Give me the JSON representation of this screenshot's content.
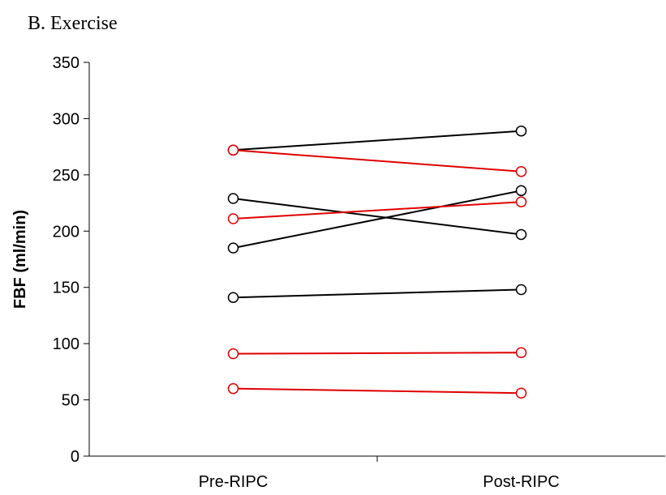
{
  "panel_title": "B.  Exercise",
  "chart_data": {
    "type": "line",
    "title": "",
    "xlabel": "",
    "ylabel": "FBF (ml/min)",
    "categories": [
      "Pre-RIPC",
      "Post-RIPC"
    ],
    "ylim": [
      0,
      350
    ],
    "yticks": [
      0,
      50,
      100,
      150,
      200,
      250,
      300,
      350
    ],
    "grid": false,
    "legend": "none",
    "marker": "open-circle",
    "colors": {
      "black": "#000000",
      "red": "#e00000"
    },
    "series": [
      {
        "color": "black",
        "values": [
          272,
          289
        ]
      },
      {
        "color": "black",
        "values": [
          229,
          197
        ]
      },
      {
        "color": "black",
        "values": [
          185,
          236
        ]
      },
      {
        "color": "black",
        "values": [
          141,
          148
        ]
      },
      {
        "color": "red",
        "values": [
          272,
          253
        ]
      },
      {
        "color": "red",
        "values": [
          211,
          226
        ]
      },
      {
        "color": "red",
        "values": [
          91,
          92
        ]
      },
      {
        "color": "red",
        "values": [
          60,
          56
        ]
      }
    ]
  }
}
